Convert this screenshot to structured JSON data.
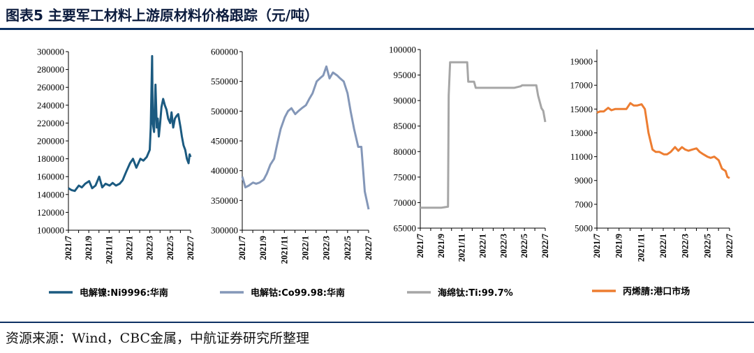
{
  "header": {
    "title": "图表5  主要军工材料上游原材料价格跟踪（元/吨）"
  },
  "footer": {
    "source": "资源来源：Wind，CBC金属，中航证券研究所整理"
  },
  "chart_data": [
    {
      "type": "line",
      "series": [
        {
          "name": "电解镍:Ni9996:华南",
          "color": "#1b5a80",
          "x": [
            "2021-07-01",
            "2021-07-10",
            "2021-07-20",
            "2021-08-01",
            "2021-08-10",
            "2021-08-20",
            "2021-09-01",
            "2021-09-10",
            "2021-09-20",
            "2021-10-01",
            "2021-10-10",
            "2021-10-20",
            "2021-11-01",
            "2021-11-10",
            "2021-11-20",
            "2021-12-01",
            "2021-12-10",
            "2021-12-20",
            "2022-01-01",
            "2022-01-10",
            "2022-01-20",
            "2022-02-01",
            "2022-02-10",
            "2022-02-20",
            "2022-03-01",
            "2022-03-04",
            "2022-03-08",
            "2022-03-10",
            "2022-03-14",
            "2022-03-18",
            "2022-03-22",
            "2022-03-25",
            "2022-03-28",
            "2022-04-01",
            "2022-04-05",
            "2022-04-10",
            "2022-04-15",
            "2022-04-20",
            "2022-04-25",
            "2022-05-01",
            "2022-05-05",
            "2022-05-10",
            "2022-05-15",
            "2022-05-20",
            "2022-05-25",
            "2022-06-01",
            "2022-06-05",
            "2022-06-10",
            "2022-06-15",
            "2022-06-20",
            "2022-06-25",
            "2022-06-28",
            "2022-07-01"
          ],
          "values": [
            147000,
            145000,
            144000,
            150000,
            148000,
            152000,
            155000,
            147000,
            150000,
            160000,
            148000,
            152000,
            150000,
            153000,
            150000,
            152000,
            156000,
            165000,
            175000,
            180000,
            170000,
            180000,
            178000,
            182000,
            190000,
            215000,
            295000,
            220000,
            210000,
            263000,
            215000,
            225000,
            205000,
            220000,
            238000,
            247000,
            240000,
            235000,
            225000,
            220000,
            232000,
            215000,
            225000,
            228000,
            230000,
            215000,
            205000,
            195000,
            190000,
            180000,
            175000,
            185000,
            182000
          ]
        }
      ],
      "ylim": [
        100000,
        300000
      ],
      "yticks": [
        100000,
        120000,
        140000,
        160000,
        180000,
        200000,
        220000,
        240000,
        260000,
        280000,
        300000
      ],
      "ytick_labels": [
        "100000",
        "120000",
        "140000",
        "160000",
        "180000",
        "200000",
        "220000",
        "240000",
        "260000",
        "280000",
        "300000"
      ],
      "xticks": [
        "2021/7",
        "2021/9",
        "2021/11",
        "2022/1",
        "2022/3",
        "2022/5",
        "2022/7"
      ]
    },
    {
      "type": "line",
      "series": [
        {
          "name": "电解钴:Co99.98:华南",
          "color": "#8497b8",
          "x": [
            "2021-07-01",
            "2021-07-10",
            "2021-07-20",
            "2021-08-01",
            "2021-08-10",
            "2021-08-20",
            "2021-09-01",
            "2021-09-10",
            "2021-09-20",
            "2021-10-01",
            "2021-10-10",
            "2021-10-20",
            "2021-11-01",
            "2021-11-10",
            "2021-11-20",
            "2021-12-01",
            "2021-12-10",
            "2021-12-20",
            "2022-01-01",
            "2022-01-10",
            "2022-01-20",
            "2022-02-01",
            "2022-02-10",
            "2022-02-20",
            "2022-03-01",
            "2022-03-10",
            "2022-03-20",
            "2022-04-01",
            "2022-04-10",
            "2022-04-20",
            "2022-05-01",
            "2022-05-10",
            "2022-05-20",
            "2022-06-01",
            "2022-06-10",
            "2022-06-20",
            "2022-07-01"
          ],
          "values": [
            390000,
            372000,
            375000,
            380000,
            378000,
            380000,
            385000,
            395000,
            410000,
            420000,
            445000,
            470000,
            490000,
            500000,
            505000,
            495000,
            500000,
            505000,
            510000,
            520000,
            530000,
            550000,
            555000,
            560000,
            575000,
            555000,
            565000,
            560000,
            555000,
            550000,
            530000,
            500000,
            470000,
            440000,
            440000,
            365000,
            335000
          ]
        }
      ],
      "ylim": [
        300000,
        600000
      ],
      "yticks": [
        300000,
        350000,
        400000,
        450000,
        500000,
        550000,
        600000
      ],
      "ytick_labels": [
        "300000",
        "350000",
        "400000",
        "450000",
        "500000",
        "550000",
        "600000"
      ],
      "xticks": [
        "2021/7",
        "2021/9",
        "2021/11",
        "2022/1",
        "2022/3",
        "2022/5",
        "2022/7"
      ]
    },
    {
      "type": "line",
      "series": [
        {
          "name": "海绵钛:Ti:99.7%",
          "color": "#a6a6a6",
          "x": [
            "2021-07-01",
            "2021-08-01",
            "2021-09-01",
            "2021-09-20",
            "2021-09-22",
            "2021-09-26",
            "2021-10-05",
            "2021-11-15",
            "2021-11-18",
            "2021-12-05",
            "2021-12-10",
            "2022-01-01",
            "2022-02-01",
            "2022-03-01",
            "2022-04-01",
            "2022-04-20",
            "2022-04-25",
            "2022-05-10",
            "2022-05-20",
            "2022-05-24",
            "2022-06-05",
            "2022-06-10",
            "2022-06-20",
            "2022-06-25",
            "2022-07-01"
          ],
          "values": [
            69000,
            69000,
            69000,
            69200,
            91000,
            97500,
            97500,
            97500,
            93700,
            93700,
            92500,
            92500,
            92500,
            92500,
            92500,
            92800,
            93000,
            93000,
            93000,
            93000,
            93000,
            91000,
            88500,
            88000,
            85800
          ]
        }
      ],
      "ylim": [
        65000,
        100000
      ],
      "yticks": [
        65000,
        70000,
        75000,
        80000,
        85000,
        90000,
        95000,
        100000
      ],
      "ytick_labels": [
        "65000",
        "70000",
        "75000",
        "80000",
        "85000",
        "90000",
        "95000",
        "100000"
      ],
      "xticks": [
        "2021/7",
        "2021/9",
        "2021/11",
        "2022/1",
        "2022/3",
        "2022/5",
        "2022/7"
      ]
    },
    {
      "type": "line",
      "series": [
        {
          "name": "丙烯腈:港口市场",
          "color": "#ed7d31",
          "x": [
            "2021-07-01",
            "2021-07-10",
            "2021-07-20",
            "2021-08-01",
            "2021-08-10",
            "2021-08-20",
            "2021-09-01",
            "2021-09-10",
            "2021-09-20",
            "2021-10-01",
            "2021-10-10",
            "2021-10-20",
            "2021-11-01",
            "2021-11-10",
            "2021-11-20",
            "2021-12-01",
            "2021-12-10",
            "2021-12-20",
            "2022-01-01",
            "2022-01-10",
            "2022-01-20",
            "2022-02-01",
            "2022-02-10",
            "2022-02-20",
            "2022-03-01",
            "2022-03-10",
            "2022-03-20",
            "2022-04-01",
            "2022-04-10",
            "2022-04-20",
            "2022-05-01",
            "2022-05-10",
            "2022-05-20",
            "2022-06-01",
            "2022-06-10",
            "2022-06-20",
            "2022-06-25",
            "2022-07-01"
          ],
          "values": [
            14700,
            14800,
            14800,
            15100,
            14900,
            15000,
            15000,
            15000,
            15000,
            15500,
            15300,
            15300,
            15400,
            15000,
            13000,
            11600,
            11400,
            11400,
            11200,
            11200,
            11400,
            11800,
            11500,
            11800,
            11600,
            11500,
            11600,
            11700,
            11400,
            11200,
            11000,
            10900,
            11000,
            10700,
            10000,
            9800,
            9300,
            9200
          ]
        }
      ],
      "ylim": [
        5000,
        20000
      ],
      "yticks": [
        5000,
        7000,
        9000,
        11000,
        13000,
        15000,
        17000,
        19000
      ],
      "ytick_labels": [
        "5000",
        "7000",
        "9000",
        "11000",
        "13000",
        "15000",
        "17000",
        "19000"
      ],
      "xticks": [
        "2021/7",
        "2021/9",
        "2021/11",
        "2022/1",
        "2022/3",
        "2022/5",
        "2022/7"
      ]
    }
  ]
}
